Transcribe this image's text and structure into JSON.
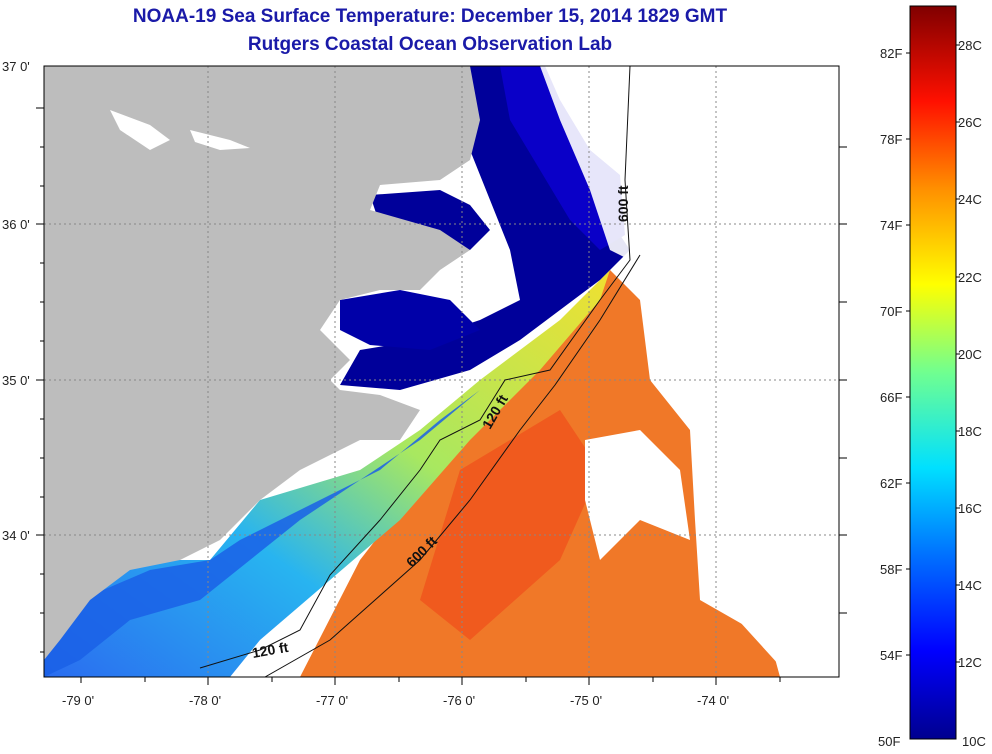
{
  "title": {
    "line1": "NOAA-19 Sea Surface Temperature:  December 15, 2014 1829 GMT",
    "line2": "Rutgers Coastal Ocean Observation Lab"
  },
  "map": {
    "lat_labels": [
      "37 0'",
      "36 0'",
      "35 0'",
      "34 0'"
    ],
    "lon_labels": [
      "-79 0'",
      "-78 0'",
      "-77 0'",
      "-76 0'",
      "-75 0'",
      "-74 0'"
    ],
    "contour_labels": [
      "600 ft",
      "120 ft",
      "600 ft",
      "120 ft"
    ]
  },
  "colorbar": {
    "fahrenheit_labels": [
      "82F",
      "78F",
      "74F",
      "70F",
      "66F",
      "62F",
      "58F",
      "54F",
      "50F"
    ],
    "celsius_labels": [
      "28C",
      "26C",
      "24C",
      "22C",
      "20C",
      "18C",
      "16C",
      "14C",
      "12C",
      "10C"
    ],
    "range_c": [
      10,
      29
    ],
    "colors": [
      "#00008f",
      "#0000ff",
      "#0080ff",
      "#00ffff",
      "#80ff80",
      "#ffff00",
      "#ff8000",
      "#ff0000",
      "#800000"
    ]
  },
  "colors": {
    "land": "#bdbdbd",
    "title": "#1a1aa8",
    "cloud": "#ffffff"
  }
}
